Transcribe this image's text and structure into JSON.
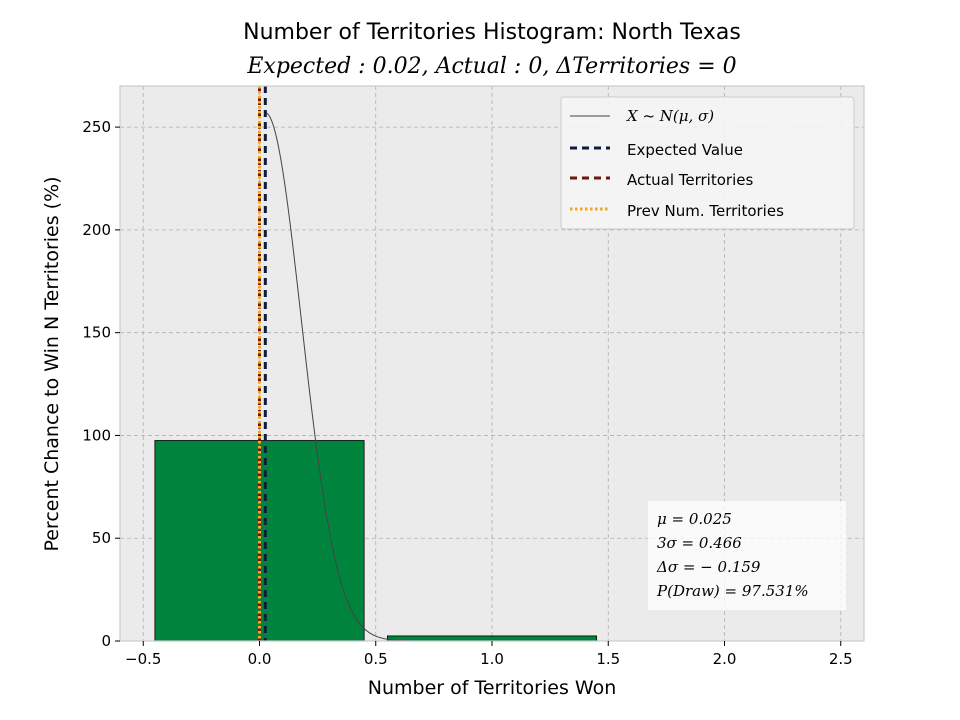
{
  "chart_data": {
    "type": "bar",
    "title": "Number of Territories Histogram: North Texas",
    "subtitle": "Expected : 0.02, Actual : 0, ΔTerritories = 0",
    "xlabel": "Number of Territories Won",
    "ylabel": "Percent Chance to Win N Territories (%)",
    "xlim": [
      -0.6,
      2.6
    ],
    "ylim": [
      0,
      270
    ],
    "xticks": [
      -0.5,
      0.0,
      0.5,
      1.0,
      1.5,
      2.0,
      2.5
    ],
    "xtick_labels": [
      "−0.5",
      "0.0",
      "0.5",
      "1.0",
      "1.5",
      "2.0",
      "2.5"
    ],
    "yticks": [
      0,
      50,
      100,
      150,
      200,
      250
    ],
    "ytick_labels": [
      "0",
      "50",
      "100",
      "150",
      "200",
      "250"
    ],
    "grid": true,
    "bar_width": 0.9,
    "bars": [
      {
        "x": 0,
        "value": 97.531
      },
      {
        "x": 1,
        "value": 2.469
      }
    ],
    "normal_curve": {
      "mu": 0.025,
      "sigma": 0.1553,
      "peak": 257
    },
    "vlines": {
      "expected": 0.025,
      "actual": 0,
      "previous": 0
    },
    "colors": {
      "bar_fill": "#00843d",
      "bar_edge": "#000000",
      "curve": "#444444",
      "expected": "#0d1b3e",
      "actual": "#6b1a0c",
      "previous": "#f5a623",
      "plot_bg": "#ebebeb",
      "grid": "#b0b0b0"
    },
    "legend": {
      "placement": "top-right",
      "entries": [
        {
          "label": "X ~ N(μ, σ)",
          "style": "curve"
        },
        {
          "label": "Expected Value",
          "style": "expected"
        },
        {
          "label": "Actual Territories",
          "style": "actual"
        },
        {
          "label": "Prev Num. Territories",
          "style": "previous"
        }
      ]
    },
    "stats_box": {
      "placement": "bottom-right",
      "lines": [
        "μ = 0.025",
        "3σ = 0.466",
        "Δσ = − 0.159",
        "P(Draw) = 97.531%"
      ]
    }
  }
}
